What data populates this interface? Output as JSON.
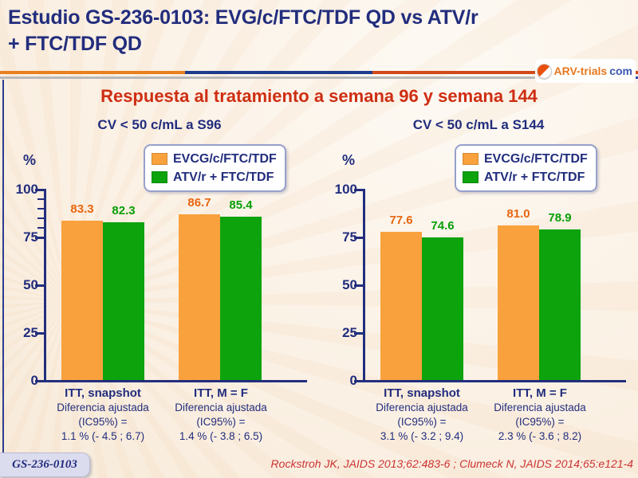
{
  "page": {
    "title_line1": "Estudio GS-236-0103: EVG/c/FTC/TDF QD vs ATV/r",
    "title_line2": "+ FTC/TDF QD",
    "subtitle": "Respuesta al tratamiento a semana 96 y semana 144",
    "footer_badge": "GS-236-0103",
    "reference": "Rockstroh JK, JAIDS 2013;62:483-6 ; Clumeck N, JAIDS 2014;65:e121-4"
  },
  "logo": {
    "pill_icon": "pill-icon",
    "text_main": "ARV-trials",
    "text_suffix": "com"
  },
  "colors": {
    "bar_orange": "#F9A13D",
    "bar_green": "#0CA30C",
    "value_label_orange": "#E8650F",
    "value_label_green": "#089F08",
    "axis_navy": "#232E7E",
    "title_navy": "#222D7D",
    "subtitle_red": "#CE2E12",
    "reference_red": "#CC3333"
  },
  "chart_data": [
    {
      "type": "bar",
      "title": "CV < 50 c/mL a S96",
      "ylabel": "%",
      "ylim": [
        0,
        100
      ],
      "yticks": [
        0,
        25,
        50,
        75,
        100
      ],
      "minor_ticks": [
        80,
        85,
        90,
        95
      ],
      "grid": false,
      "legend_position": "top-right-inside",
      "categories": [
        "ITT, snapshot",
        "ITT, M = F"
      ],
      "series": [
        {
          "name": "EVCG/c/FTC/TDF",
          "color": "#F9A13D",
          "label_color": "#E8650F",
          "values": [
            83.3,
            86.7
          ]
        },
        {
          "name": "ATV/r + FTC/TDF",
          "color": "#0CA30C",
          "label_color": "#089F08",
          "values": [
            82.3,
            85.4
          ]
        }
      ],
      "group_sublabels": [
        [
          "Diferencia ajustada",
          "(IC95%) =",
          "1.1 % (- 4.5 ; 6.7)"
        ],
        [
          "Diferencia ajustada",
          "(IC95%) =",
          "1.4 % (- 3.8 ; 6.5)"
        ]
      ]
    },
    {
      "type": "bar",
      "title": "CV < 50 c/mL a S144",
      "ylabel": "%",
      "ylim": [
        0,
        100
      ],
      "yticks": [
        0,
        25,
        50,
        75,
        100
      ],
      "minor_ticks": [],
      "grid": false,
      "legend_position": "top-right-inside",
      "categories": [
        "ITT, snapshot",
        "ITT, M = F"
      ],
      "series": [
        {
          "name": "EVCG/c/FTC/TDF",
          "color": "#F9A13D",
          "label_color": "#E8650F",
          "values": [
            77.6,
            81.0
          ]
        },
        {
          "name": "ATV/r + FTC/TDF",
          "color": "#0CA30C",
          "label_color": "#089F08",
          "values": [
            74.6,
            78.9
          ]
        }
      ],
      "group_sublabels": [
        [
          "Diferencia ajustada",
          "(IC95%) =",
          "3.1 % (- 3.2 ; 9.4)"
        ],
        [
          "Diferencia ajustada",
          "(IC95%) =",
          "2.3 % (- 3.6 ; 8.2)"
        ]
      ]
    }
  ]
}
